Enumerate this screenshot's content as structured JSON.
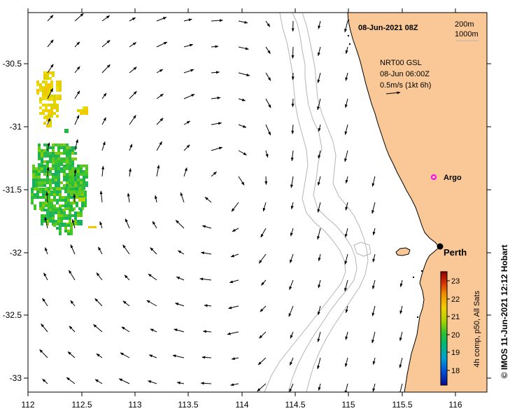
{
  "title": "08-Jun-2021 08Z",
  "depth_contours": [
    "200m",
    "1000m"
  ],
  "current_info": {
    "source": "NRT00 GSL",
    "time": "08-Jun 06:00Z",
    "scale": "0.5m/s (1kt 6h)"
  },
  "places": {
    "argo": "Argo",
    "city": "Perth"
  },
  "colorbar": {
    "label": "4h comp, p50, All Sats",
    "ticks": [
      "23",
      "22",
      "21",
      "20",
      "19",
      "18"
    ],
    "colors": [
      "#0a0a8c",
      "#0050d8",
      "#00a0d0",
      "#00b870",
      "#30c030",
      "#a8d000",
      "#f0d000",
      "#f09000",
      "#d83000",
      "#8c0000"
    ]
  },
  "axes": {
    "lon_ticks": [
      "112",
      "112.5",
      "113",
      "113.5",
      "114",
      "114.5",
      "115",
      "115.5",
      "116"
    ],
    "lat_ticks": [
      "-30.5",
      "-31",
      "-31.5",
      "-32",
      "-32.5",
      "-33"
    ]
  },
  "credit": "© IMOS 11-Jun-2021 12:12 Hobart",
  "colors": {
    "land": "#f9c896",
    "coast": "#000000",
    "contour": "#b4b4b4",
    "argo": "#ff00ff"
  }
}
